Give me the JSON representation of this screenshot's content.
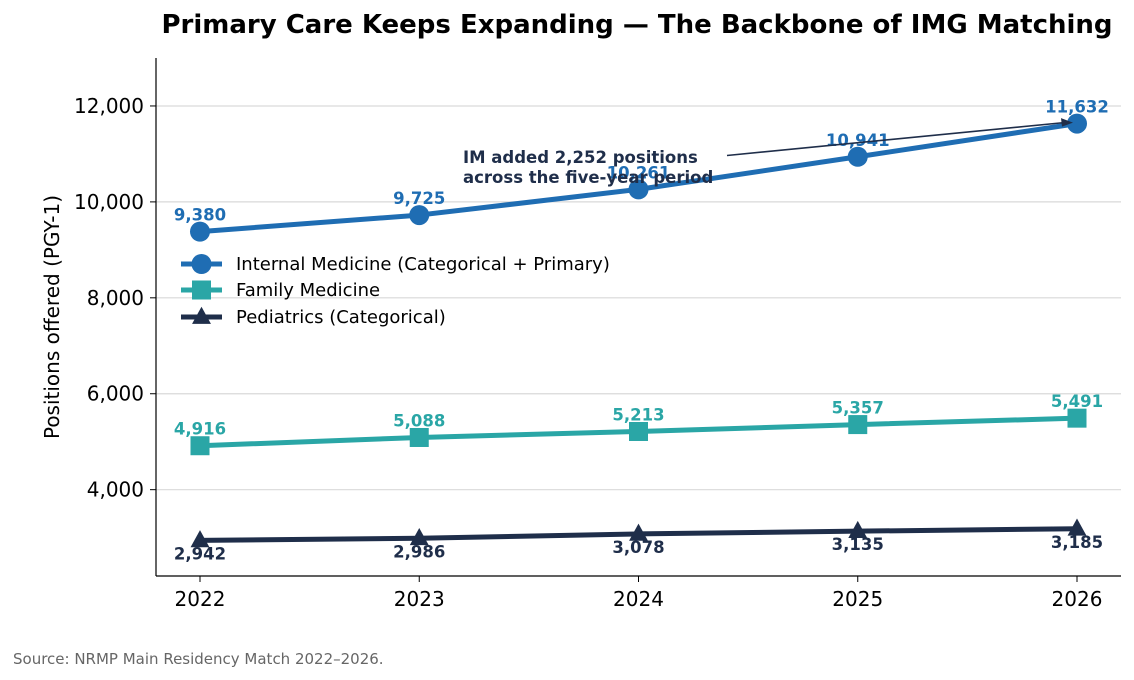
{
  "chart_data": {
    "type": "line",
    "title": "Primary Care Keeps Expanding — The Backbone of IMG Matching",
    "xlabel": "",
    "ylabel": "Positions offered (PGY-1)",
    "x": [
      2022,
      2023,
      2024,
      2025,
      2026
    ],
    "x_tick_labels": [
      "2022",
      "2023",
      "2024",
      "2025",
      "2026"
    ],
    "ylim": [
      2200,
      13000
    ],
    "y_ticks": [
      4000,
      6000,
      8000,
      10000,
      12000
    ],
    "y_tick_labels": [
      "4,000",
      "6,000",
      "8,000",
      "10,000",
      "12,000"
    ],
    "grid": "horizontal",
    "legend_position": "center-left",
    "series": [
      {
        "name": "Internal Medicine (Categorical + Primary)",
        "values": [
          9380,
          9725,
          10261,
          10941,
          11632
        ],
        "labels": [
          "9,380",
          "9,725",
          "10,261",
          "10,941",
          "11,632"
        ],
        "color": "#1f6db3",
        "marker": "circle"
      },
      {
        "name": "Family Medicine",
        "values": [
          4916,
          5088,
          5213,
          5357,
          5491
        ],
        "labels": [
          "4,916",
          "5,088",
          "5,213",
          "5,357",
          "5,491"
        ],
        "color": "#2aa6a6",
        "marker": "square"
      },
      {
        "name": "Pediatrics (Categorical)",
        "values": [
          2942,
          2986,
          3078,
          3135,
          3185
        ],
        "labels": [
          "2,942",
          "2,986",
          "3,078",
          "3,135",
          "3,185"
        ],
        "color": "#1f2e4a",
        "marker": "triangle"
      }
    ],
    "annotation": {
      "lines": [
        "IM added 2,252 positions",
        "across the five-year period"
      ],
      "target_series": 0,
      "target_index": 4,
      "color": "#1f2e4a"
    }
  },
  "source": "Source: NRMP Main Residency Match 2022–2026."
}
